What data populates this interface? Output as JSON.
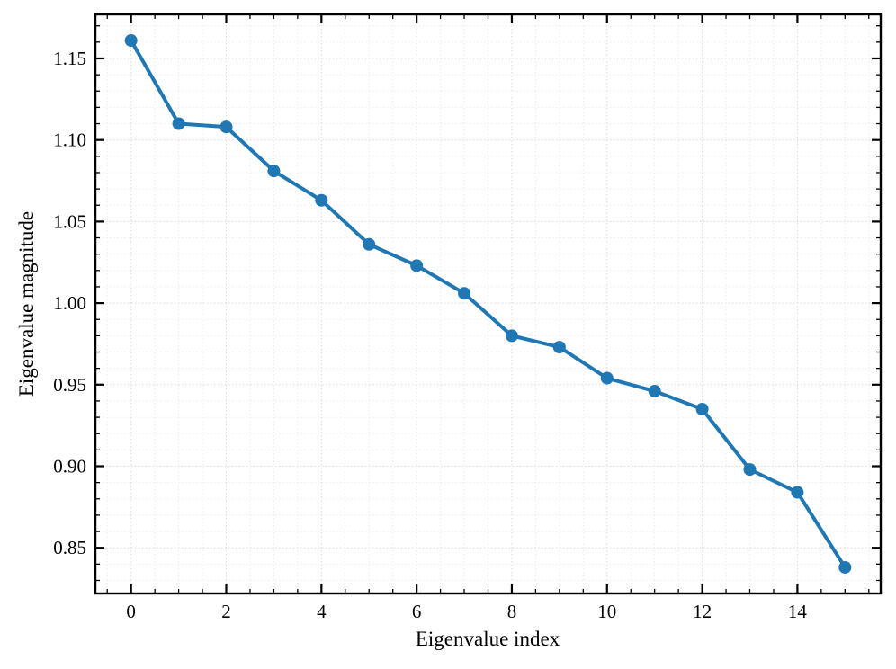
{
  "chart_data": {
    "type": "line",
    "series_name": "eigenvalue-magnitude",
    "x": [
      0,
      1,
      2,
      3,
      4,
      5,
      6,
      7,
      8,
      9,
      10,
      11,
      12,
      13,
      14,
      15
    ],
    "y": [
      1.161,
      1.11,
      1.108,
      1.081,
      1.063,
      1.036,
      1.023,
      1.006,
      0.98,
      0.973,
      0.954,
      0.946,
      0.935,
      0.898,
      0.884,
      0.838
    ],
    "title": "",
    "xlabel": "Eigenvalue index",
    "ylabel": "Eigenvalue magnitude",
    "xlim": [
      -0.75,
      15.75
    ],
    "ylim": [
      0.822,
      1.177
    ],
    "xticks": {
      "values": [
        0,
        2,
        4,
        6,
        8,
        10,
        12,
        14
      ],
      "labels": [
        "0",
        "2",
        "4",
        "6",
        "8",
        "10",
        "12",
        "14"
      ],
      "minor_step": 0.5
    },
    "yticks": {
      "values": [
        0.85,
        0.9,
        0.95,
        1.0,
        1.05,
        1.1,
        1.15
      ],
      "labels": [
        "0.85",
        "0.90",
        "0.95",
        "1.00",
        "1.05",
        "1.10",
        "1.15"
      ],
      "minor_step": 0.01
    },
    "grid": {
      "which": "both",
      "style": "dotted"
    },
    "legend": null,
    "line_color": "#1f77b4",
    "marker": "circle"
  }
}
